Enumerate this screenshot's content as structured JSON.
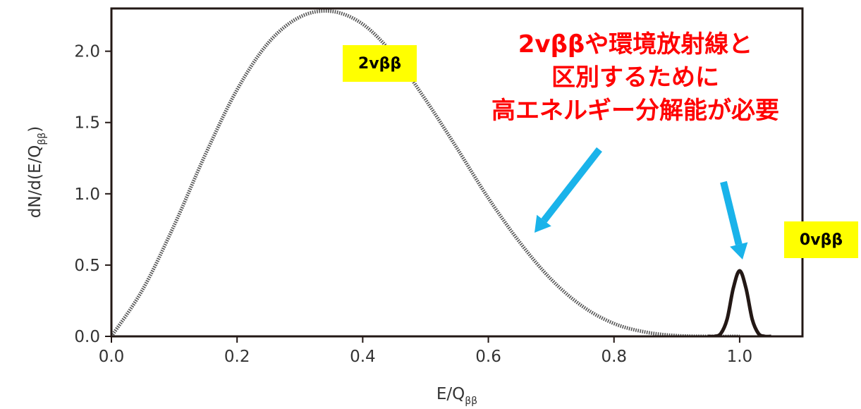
{
  "chart_data": {
    "type": "line",
    "xlabel": {
      "base": "E/Q",
      "sub": "ββ"
    },
    "ylabel": {
      "base": "dN/d(E/Q",
      "sub": "ββ",
      "tail": ")"
    },
    "xlim": [
      0.0,
      1.1
    ],
    "ylim": [
      0.0,
      2.3
    ],
    "xticks": [
      "0.0",
      "0.2",
      "0.4",
      "0.6",
      "0.8",
      "1.0"
    ],
    "yticks": [
      "0.0",
      "0.5",
      "1.0",
      "1.5",
      "2.0"
    ],
    "grid": false,
    "series": [
      {
        "name": "2vββ",
        "style": "dotted",
        "color": "#555555",
        "x": [
          0.0,
          0.05,
          0.1,
          0.15,
          0.2,
          0.25,
          0.3,
          0.35,
          0.4,
          0.45,
          0.5,
          0.55,
          0.6,
          0.65,
          0.7,
          0.75,
          0.8,
          0.85,
          0.9,
          0.95,
          1.0
        ],
        "y": [
          0.0,
          0.33,
          0.78,
          1.28,
          1.73,
          2.06,
          2.24,
          2.28,
          2.19,
          1.97,
          1.66,
          1.32,
          0.97,
          0.66,
          0.4,
          0.21,
          0.09,
          0.03,
          0.005,
          0.0,
          0.0
        ]
      },
      {
        "name": "0vββ",
        "style": "solid",
        "color": "#231815",
        "x": [
          0.95,
          0.96,
          0.97,
          0.98,
          0.99,
          1.0,
          1.01,
          1.02,
          1.03,
          1.04,
          1.05
        ],
        "y": [
          0.0,
          0.0,
          0.02,
          0.12,
          0.34,
          0.46,
          0.34,
          0.12,
          0.02,
          0.0,
          0.0
        ]
      }
    ],
    "annotation": {
      "lines": [
        "2vββや環境放射線と",
        "区別するために",
        "高エネルギー分解能が必要"
      ],
      "color": "#ff0000"
    },
    "arrow_color": "#1ab3ea",
    "badge_color": "#ffff00"
  }
}
